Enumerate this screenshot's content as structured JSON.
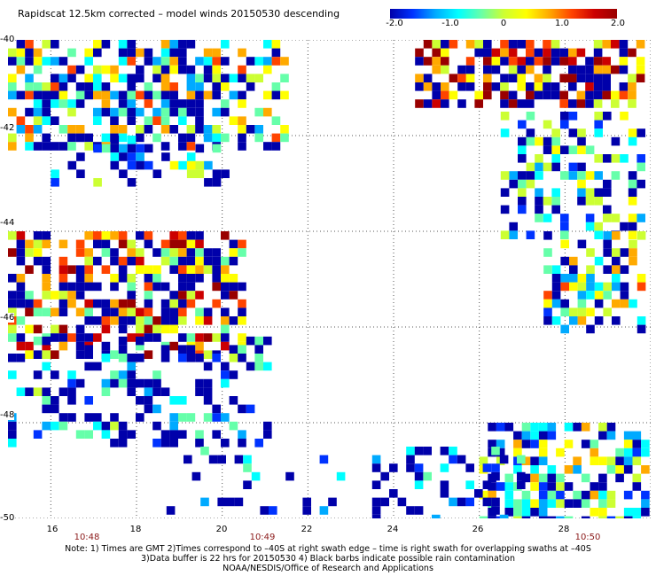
{
  "title": "Rapidscat 12.5km corrected – model winds 20150530 descending",
  "colorbar": {
    "labels": [
      "-2.0",
      "-1.0",
      "0",
      "1.0",
      "2.0"
    ],
    "min": -2.0,
    "max": 2.0,
    "colors": [
      "#0000aa",
      "#0033ff",
      "#00aaff",
      "#00ffff",
      "#66ffaa",
      "#ccff33",
      "#ffff00",
      "#ffaa00",
      "#ff4400",
      "#cc0000",
      "#990000"
    ]
  },
  "map": {
    "lon_ticks": [
      "16",
      "18",
      "20",
      "22",
      "24",
      "26",
      "28"
    ],
    "lat_ticks": [
      "-40",
      "-42",
      "-44",
      "-46",
      "-48",
      "-50"
    ],
    "lon_range": [
      15.0,
      30.0
    ],
    "lat_range": [
      -40.0,
      -50.0
    ],
    "time_labels": [
      {
        "text": "10:48",
        "lon": 16.8
      },
      {
        "text": "10:49",
        "lon": 20.9
      },
      {
        "text": "10:50",
        "lon": 28.6
      }
    ],
    "clusters": [
      {
        "lon": [
          15.0,
          21.5
        ],
        "lat": [
          -40.0,
          -42.2
        ],
        "level": 0.0,
        "density": 0.75
      },
      {
        "lon": [
          16.0,
          20.0
        ],
        "lat": [
          -42.0,
          -43.0
        ],
        "level": -1.0,
        "density": 0.4
      },
      {
        "lon": [
          24.5,
          29.8
        ],
        "lat": [
          -40.0,
          -41.3
        ],
        "level": 1.2,
        "density": 0.8
      },
      {
        "lon": [
          26.5,
          29.8
        ],
        "lat": [
          -41.5,
          -44.0
        ],
        "level": -0.7,
        "density": 0.5
      },
      {
        "lon": [
          15.0,
          20.5
        ],
        "lat": [
          -44.0,
          -46.5
        ],
        "level": 0.8,
        "density": 0.8
      },
      {
        "lon": [
          15.0,
          21.0
        ],
        "lat": [
          -46.2,
          -48.5
        ],
        "level": -1.4,
        "density": 0.45
      },
      {
        "lon": [
          27.5,
          29.8
        ],
        "lat": [
          -44.0,
          -46.0
        ],
        "level": -0.2,
        "density": 0.55
      },
      {
        "lon": [
          26.0,
          29.8
        ],
        "lat": [
          -48.0,
          -50.0
        ],
        "level": -0.4,
        "density": 0.7
      },
      {
        "lon": [
          23.5,
          27.0
        ],
        "lat": [
          -48.5,
          -50.0
        ],
        "level": -1.6,
        "density": 0.4
      },
      {
        "lon": [
          18.5,
          23.5
        ],
        "lat": [
          -48.5,
          -50.0
        ],
        "level": -1.6,
        "density": 0.15
      }
    ]
  },
  "notes": [
    "Note: 1) Times are GMT 2)Times correspond to –40S at right swath edge – time is right swath for overlapping swaths at –40S",
    "3)Data buffer is 22 hrs for 20150530 4) Black barbs indicate possible rain contamination",
    "NOAA/NESDIS/Office of Research and Applications"
  ]
}
